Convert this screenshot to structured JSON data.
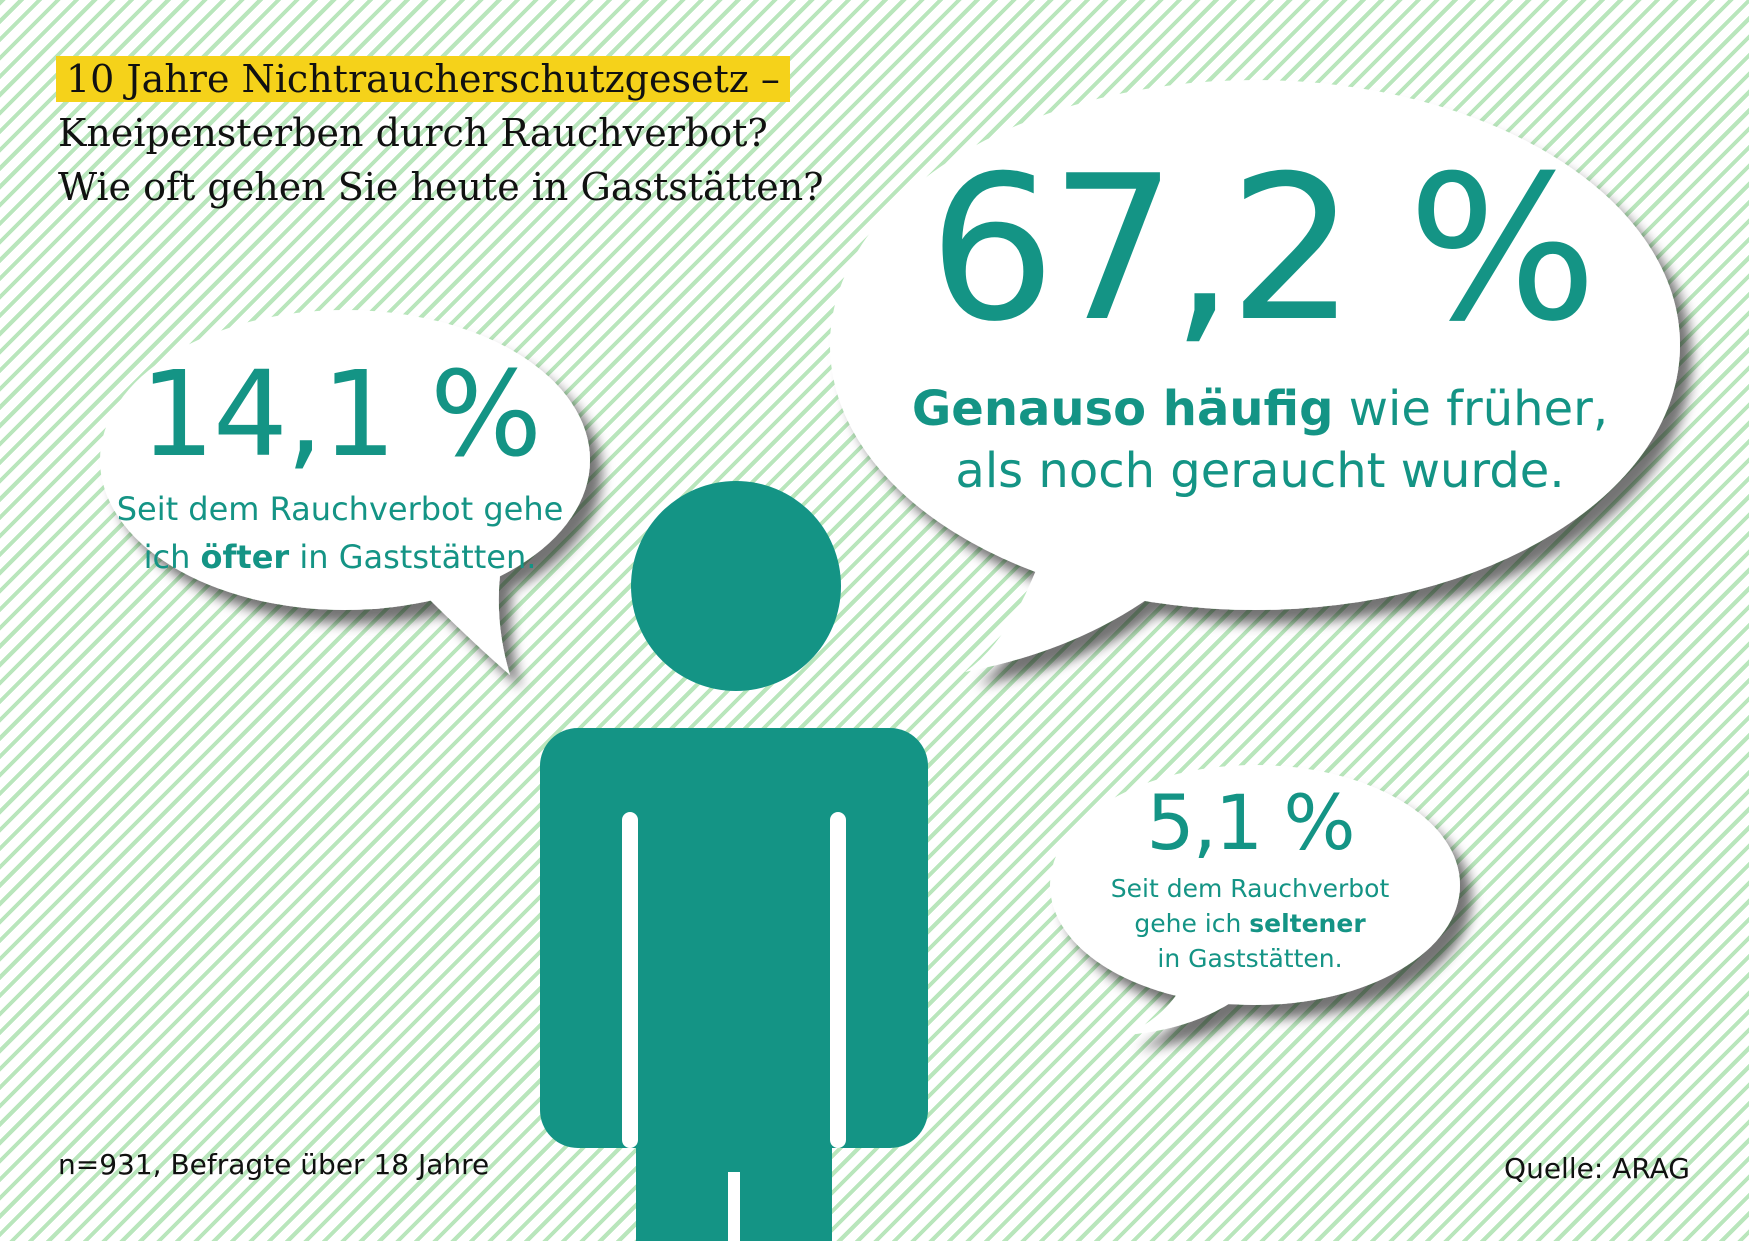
{
  "header": {
    "title_line1": "10 Jahre Nichtraucherschutzgesetz –",
    "title_line2": "Kneipensterben durch Rauchverbot?",
    "title_line3": "Wie oft gehen Sie heute in Gaststätten?"
  },
  "chart_data": {
    "type": "table",
    "title": "10 Jahre Nichtraucherschutzgesetz – Kneipensterben durch Rauchverbot? Wie oft gehen Sie heute in Gaststätten?",
    "series": [
      {
        "name": "Genauso häufig",
        "value": 67.2,
        "value_label": "67,2 %",
        "desc_bold": "Genauso häufig",
        "desc_rest": " wie früher,",
        "desc_line2": "als noch geraucht wurde."
      },
      {
        "name": "öfter",
        "value": 14.1,
        "value_label": "14,1 %",
        "desc_line1": "Seit dem Rauchverbot gehe",
        "desc_pre": "ich ",
        "desc_bold": "öfter",
        "desc_post": " in Gaststätten."
      },
      {
        "name": "seltener",
        "value": 5.1,
        "value_label": "5,1 %",
        "desc_line1": "Seit dem Rauchverbot",
        "desc_pre": "gehe ich ",
        "desc_bold": "seltener",
        "desc_line3": "in Gaststätten."
      }
    ]
  },
  "footer": {
    "note": "n=931, Befragte über 18 Jahre",
    "source": "Quelle: ARAG"
  },
  "colors": {
    "accent": "#149485",
    "highlight": "#f5d21a",
    "stripe": "#b9e6bc"
  },
  "icons": [
    "person-icon"
  ]
}
